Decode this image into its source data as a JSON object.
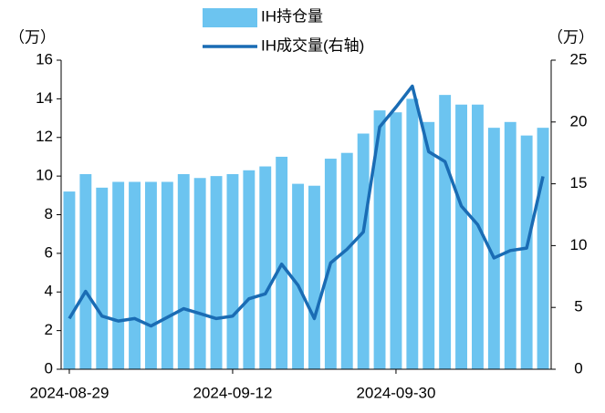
{
  "chart_data": {
    "type": "bar-line",
    "categories": [
      "2024-08-29",
      null,
      null,
      null,
      null,
      null,
      null,
      null,
      null,
      null,
      "2024-09-12",
      null,
      null,
      null,
      null,
      null,
      null,
      null,
      null,
      null,
      "2024-09-30",
      null,
      null,
      null,
      null,
      null,
      null,
      null,
      null,
      null
    ],
    "series": [
      {
        "name": "IH持仓量",
        "type": "bar",
        "color": "#6cc4f0",
        "axis": "y",
        "values": [
          9.2,
          10.1,
          9.4,
          9.7,
          9.7,
          9.7,
          9.7,
          10.1,
          9.9,
          10.0,
          10.1,
          10.3,
          10.5,
          11.0,
          9.6,
          9.5,
          10.9,
          11.2,
          12.2,
          13.4,
          13.3,
          14.0,
          12.8,
          14.2,
          13.7,
          13.7,
          12.5,
          12.8,
          12.1,
          12.5
        ]
      },
      {
        "name": "IH成交量(右轴)",
        "type": "line",
        "color": "#1a6cb4",
        "axis": "y2",
        "values": [
          4.1,
          6.3,
          4.3,
          3.9,
          4.1,
          3.5,
          4.2,
          4.9,
          4.5,
          4.1,
          4.3,
          5.7,
          6.1,
          8.5,
          6.8,
          4.1,
          8.6,
          9.7,
          11.1,
          19.6,
          21.2,
          22.9,
          17.6,
          16.8,
          13.2,
          11.7,
          9.0,
          9.6,
          9.8,
          15.6
        ]
      }
    ],
    "y_unit": "（万）",
    "y2_unit": "（万）",
    "ylim": [
      0,
      16
    ],
    "yticks": [
      0,
      2,
      4,
      6,
      8,
      10,
      12,
      14,
      16
    ],
    "y2lim": [
      0,
      25
    ],
    "y2ticks": [
      0,
      5,
      10,
      15,
      20,
      25
    ]
  }
}
